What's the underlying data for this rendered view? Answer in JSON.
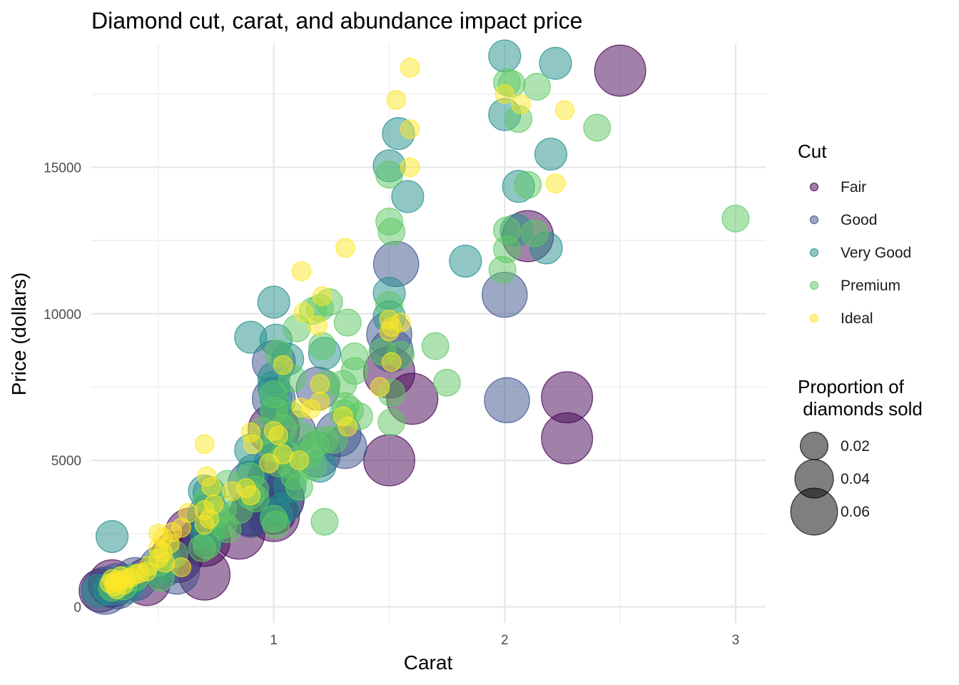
{
  "chart_data": {
    "type": "scatter",
    "title": "Diamond cut, carat, and abundance impact price",
    "xlabel": "Carat",
    "ylabel": "Price (dollars)",
    "xlim": [
      0.21,
      3.13
    ],
    "ylim": [
      -550,
      19200
    ],
    "x_ticks": [
      1,
      2,
      3
    ],
    "y_ticks": [
      0,
      5000,
      10000,
      15000
    ],
    "grid": true,
    "legend_placement": "right",
    "color_legend": {
      "title": "Cut",
      "entries": [
        {
          "name": "Fair",
          "color": "#440154"
        },
        {
          "name": "Good",
          "color": "#3B528B"
        },
        {
          "name": "Very Good",
          "color": "#21908C"
        },
        {
          "name": "Premium",
          "color": "#5DC863"
        },
        {
          "name": "Ideal",
          "color": "#FDE725"
        }
      ]
    },
    "size_legend": {
      "title_lines": [
        "Proportion of",
        " diamonds sold"
      ],
      "entries": [
        {
          "label": "0.02",
          "value": 0.02
        },
        {
          "label": "0.04",
          "value": 0.04
        },
        {
          "label": "0.06",
          "value": 0.06
        }
      ]
    },
    "series": [
      {
        "name": "Fair",
        "points": [
          [
            2.5,
            18300,
            0.06
          ],
          [
            2.1,
            12650,
            0.06
          ],
          [
            1.5,
            8000,
            0.06
          ],
          [
            1.6,
            7100,
            0.06
          ],
          [
            2.27,
            7150,
            0.06
          ],
          [
            2.27,
            5750,
            0.06
          ],
          [
            1.5,
            5000,
            0.06
          ],
          [
            1.0,
            6050,
            0.06
          ],
          [
            1.0,
            4350,
            0.06
          ],
          [
            1.02,
            3650,
            0.06
          ],
          [
            1.0,
            3100,
            0.06
          ],
          [
            1.0,
            3250,
            0.045
          ],
          [
            0.9,
            3150,
            0.04
          ],
          [
            0.85,
            2500,
            0.06
          ],
          [
            0.7,
            2250,
            0.06
          ],
          [
            0.64,
            2500,
            0.06
          ],
          [
            0.7,
            1100,
            0.06
          ],
          [
            0.58,
            1700,
            0.06
          ],
          [
            0.45,
            850,
            0.05
          ],
          [
            0.3,
            800,
            0.05
          ],
          [
            0.25,
            550,
            0.04
          ]
        ]
      },
      {
        "name": "Good",
        "points": [
          [
            1.53,
            11700,
            0.045
          ],
          [
            2.0,
            10650,
            0.045
          ],
          [
            2.01,
            7050,
            0.045
          ],
          [
            1.5,
            9300,
            0.045
          ],
          [
            1.51,
            8750,
            0.04
          ],
          [
            1.19,
            7450,
            0.04
          ],
          [
            1.0,
            8350,
            0.04
          ],
          [
            1.0,
            7100,
            0.04
          ],
          [
            1.09,
            5950,
            0.04
          ],
          [
            1.28,
            5900,
            0.045
          ],
          [
            1.31,
            5450,
            0.04
          ],
          [
            1.19,
            5200,
            0.045
          ],
          [
            1.01,
            4800,
            0.045
          ],
          [
            1.0,
            4200,
            0.05
          ],
          [
            0.9,
            4200,
            0.045
          ],
          [
            1.03,
            3700,
            0.05
          ],
          [
            0.91,
            3250,
            0.045
          ],
          [
            0.9,
            3100,
            0.04
          ],
          [
            0.72,
            3100,
            0.04
          ],
          [
            0.7,
            2450,
            0.04
          ],
          [
            0.58,
            1200,
            0.045
          ],
          [
            0.51,
            1350,
            0.04
          ],
          [
            0.4,
            950,
            0.04
          ],
          [
            0.32,
            700,
            0.045
          ],
          [
            0.27,
            550,
            0.05
          ]
        ]
      },
      {
        "name": "Very Good",
        "points": [
          [
            2.0,
            18800,
            0.02
          ],
          [
            2.22,
            18550,
            0.02
          ],
          [
            2.0,
            16800,
            0.02
          ],
          [
            1.54,
            16150,
            0.02
          ],
          [
            2.2,
            15450,
            0.02
          ],
          [
            1.5,
            15050,
            0.02
          ],
          [
            2.06,
            14350,
            0.02
          ],
          [
            1.58,
            14000,
            0.02
          ],
          [
            2.05,
            12850,
            0.02
          ],
          [
            2.18,
            12250,
            0.02
          ],
          [
            1.83,
            11800,
            0.02
          ],
          [
            1.5,
            10700,
            0.02
          ],
          [
            1.5,
            9900,
            0.02
          ],
          [
            1.0,
            10400,
            0.02
          ],
          [
            0.9,
            9200,
            0.02
          ],
          [
            1.01,
            9100,
            0.02
          ],
          [
            1.06,
            8450,
            0.02
          ],
          [
            1.22,
            8650,
            0.02
          ],
          [
            1.0,
            7800,
            0.02
          ],
          [
            1.0,
            7500,
            0.02
          ],
          [
            1.01,
            7150,
            0.02
          ],
          [
            1.01,
            6650,
            0.02
          ],
          [
            1.0,
            5700,
            0.02
          ],
          [
            0.9,
            5350,
            0.02
          ],
          [
            1.04,
            5400,
            0.02
          ],
          [
            1.2,
            4800,
            0.02
          ],
          [
            0.91,
            4650,
            0.02
          ],
          [
            1.07,
            4100,
            0.02
          ],
          [
            0.7,
            3950,
            0.02
          ],
          [
            0.72,
            3900,
            0.02
          ],
          [
            1.04,
            3350,
            0.02
          ],
          [
            1.01,
            3150,
            0.02
          ],
          [
            0.7,
            3050,
            0.02
          ],
          [
            0.72,
            2650,
            0.02
          ],
          [
            0.71,
            2400,
            0.02
          ],
          [
            0.3,
            2400,
            0.02
          ],
          [
            0.52,
            1500,
            0.02
          ],
          [
            0.5,
            1300,
            0.02
          ],
          [
            0.32,
            800,
            0.02
          ],
          [
            0.29,
            600,
            0.02
          ],
          [
            0.24,
            550,
            0.02
          ],
          [
            0.38,
            900,
            0.02
          ],
          [
            0.36,
            650,
            0.02
          ]
        ]
      },
      {
        "name": "Premium",
        "points": [
          [
            2.01,
            17900,
            0.013
          ],
          [
            2.03,
            17850,
            0.013
          ],
          [
            2.14,
            17750,
            0.013
          ],
          [
            2.06,
            16650,
            0.013
          ],
          [
            2.4,
            16350,
            0.013
          ],
          [
            1.5,
            14750,
            0.013
          ],
          [
            2.1,
            14400,
            0.013
          ],
          [
            3.0,
            13250,
            0.013
          ],
          [
            1.5,
            13150,
            0.013
          ],
          [
            1.51,
            12800,
            0.013
          ],
          [
            2.01,
            12850,
            0.013
          ],
          [
            2.13,
            12750,
            0.013
          ],
          [
            2.01,
            12200,
            0.013
          ],
          [
            1.99,
            11500,
            0.013
          ],
          [
            1.24,
            10400,
            0.013
          ],
          [
            1.2,
            10200,
            0.013
          ],
          [
            1.17,
            10100,
            0.013
          ],
          [
            1.5,
            10300,
            0.013
          ],
          [
            1.32,
            9700,
            0.013
          ],
          [
            1.1,
            9500,
            0.013
          ],
          [
            1.7,
            8900,
            0.013
          ],
          [
            1.21,
            8900,
            0.013
          ],
          [
            1.47,
            8700,
            0.013
          ],
          [
            1.55,
            8600,
            0.013
          ],
          [
            1.35,
            8550,
            0.013
          ],
          [
            1.02,
            8650,
            0.013
          ],
          [
            1.35,
            8050,
            0.013
          ],
          [
            1.08,
            7800,
            0.013
          ],
          [
            1.75,
            7650,
            0.013
          ],
          [
            1.23,
            7600,
            0.013
          ],
          [
            1.3,
            7600,
            0.013
          ],
          [
            1.0,
            7250,
            0.013
          ],
          [
            1.51,
            7300,
            0.013
          ],
          [
            1.31,
            6850,
            0.013
          ],
          [
            1.33,
            6700,
            0.013
          ],
          [
            1.3,
            6600,
            0.013
          ],
          [
            1.37,
            6500,
            0.013
          ],
          [
            1.51,
            6300,
            0.013
          ],
          [
            1.0,
            6700,
            0.013
          ],
          [
            1.07,
            6550,
            0.013
          ],
          [
            1.04,
            6100,
            0.013
          ],
          [
            0.95,
            6000,
            0.013
          ],
          [
            1.13,
            5800,
            0.013
          ],
          [
            1.22,
            5700,
            0.013
          ],
          [
            1.26,
            5700,
            0.013
          ],
          [
            1.18,
            5550,
            0.013
          ],
          [
            1.0,
            5400,
            0.013
          ],
          [
            1.05,
            5250,
            0.013
          ],
          [
            1.15,
            5200,
            0.013
          ],
          [
            1.02,
            4900,
            0.013
          ],
          [
            1.07,
            4850,
            0.013
          ],
          [
            1.17,
            4800,
            0.013
          ],
          [
            1.09,
            4450,
            0.013
          ],
          [
            1.11,
            4100,
            0.013
          ],
          [
            0.9,
            4450,
            0.013
          ],
          [
            0.92,
            4000,
            0.013
          ],
          [
            0.9,
            3800,
            0.013
          ],
          [
            0.92,
            3700,
            0.013
          ],
          [
            0.8,
            4200,
            0.013
          ],
          [
            0.71,
            3650,
            0.013
          ],
          [
            0.85,
            3300,
            0.013
          ],
          [
            0.78,
            3350,
            0.013
          ],
          [
            0.75,
            3150,
            0.013
          ],
          [
            0.78,
            2800,
            0.013
          ],
          [
            0.8,
            2650,
            0.013
          ],
          [
            1.0,
            3000,
            0.013
          ],
          [
            1.01,
            2800,
            0.013
          ],
          [
            1.22,
            2900,
            0.013
          ],
          [
            0.71,
            2100,
            0.013
          ],
          [
            0.69,
            2000,
            0.013
          ],
          [
            0.57,
            1800,
            0.013
          ],
          [
            0.5,
            1500,
            0.013
          ],
          [
            0.51,
            1000,
            0.013
          ],
          [
            0.4,
            1000,
            0.013
          ],
          [
            0.35,
            700,
            0.013
          ],
          [
            0.3,
            650,
            0.013
          ],
          [
            0.34,
            900,
            0.013
          ]
        ]
      },
      {
        "name": "Ideal",
        "points": [
          [
            1.59,
            18400,
            0.005
          ],
          [
            1.53,
            17300,
            0.005
          ],
          [
            2.0,
            17500,
            0.005
          ],
          [
            2.07,
            17150,
            0.005
          ],
          [
            2.26,
            16950,
            0.005
          ],
          [
            1.59,
            16300,
            0.005
          ],
          [
            1.59,
            15000,
            0.005
          ],
          [
            2.22,
            14450,
            0.005
          ],
          [
            1.31,
            12250,
            0.005
          ],
          [
            1.12,
            11450,
            0.005
          ],
          [
            1.21,
            10600,
            0.005
          ],
          [
            1.13,
            10050,
            0.005
          ],
          [
            1.5,
            9800,
            0.005
          ],
          [
            1.55,
            9700,
            0.005
          ],
          [
            1.51,
            9550,
            0.005
          ],
          [
            1.19,
            9600,
            0.005
          ],
          [
            1.5,
            9400,
            0.005
          ],
          [
            1.51,
            8350,
            0.005
          ],
          [
            1.04,
            8250,
            0.005
          ],
          [
            1.2,
            7600,
            0.005
          ],
          [
            1.46,
            7500,
            0.005
          ],
          [
            1.2,
            7000,
            0.005
          ],
          [
            1.12,
            6800,
            0.005
          ],
          [
            1.16,
            6750,
            0.005
          ],
          [
            1.3,
            6500,
            0.005
          ],
          [
            1.32,
            6150,
            0.005
          ],
          [
            0.9,
            5950,
            0.005
          ],
          [
            1.0,
            6000,
            0.005
          ],
          [
            1.02,
            5850,
            0.005
          ],
          [
            0.91,
            5550,
            0.005
          ],
          [
            0.7,
            5550,
            0.005
          ],
          [
            1.04,
            5200,
            0.005
          ],
          [
            1.11,
            5000,
            0.005
          ],
          [
            0.98,
            4900,
            0.005
          ],
          [
            0.71,
            4450,
            0.005
          ],
          [
            0.73,
            4100,
            0.005
          ],
          [
            0.88,
            4050,
            0.005
          ],
          [
            0.82,
            3950,
            0.005
          ],
          [
            0.9,
            3800,
            0.005
          ],
          [
            0.74,
            3500,
            0.005
          ],
          [
            0.7,
            3300,
            0.005
          ],
          [
            0.63,
            3200,
            0.005
          ],
          [
            0.72,
            3000,
            0.005
          ],
          [
            0.7,
            2800,
            0.005
          ],
          [
            0.6,
            2700,
            0.005
          ],
          [
            0.56,
            2550,
            0.005
          ],
          [
            0.5,
            2500,
            0.005
          ],
          [
            0.52,
            2350,
            0.005
          ],
          [
            0.55,
            2150,
            0.005
          ],
          [
            0.5,
            2000,
            0.005
          ],
          [
            0.52,
            1850,
            0.005
          ],
          [
            0.5,
            1650,
            0.005
          ],
          [
            0.53,
            1500,
            0.005
          ],
          [
            0.6,
            1350,
            0.005
          ],
          [
            0.46,
            1400,
            0.005
          ],
          [
            0.45,
            1200,
            0.005
          ],
          [
            0.42,
            1150,
            0.005
          ],
          [
            0.4,
            1100,
            0.005
          ],
          [
            0.38,
            1000,
            0.005
          ],
          [
            0.36,
            950,
            0.005
          ],
          [
            0.33,
            900,
            0.005
          ],
          [
            0.31,
            850,
            0.005
          ],
          [
            0.31,
            700,
            0.005
          ],
          [
            0.32,
            600,
            0.005
          ],
          [
            0.35,
            750,
            0.005
          ],
          [
            0.3,
            950,
            0.005
          ],
          [
            0.34,
            1050,
            0.005
          ],
          [
            0.29,
            800,
            0.005
          ]
        ]
      }
    ]
  }
}
